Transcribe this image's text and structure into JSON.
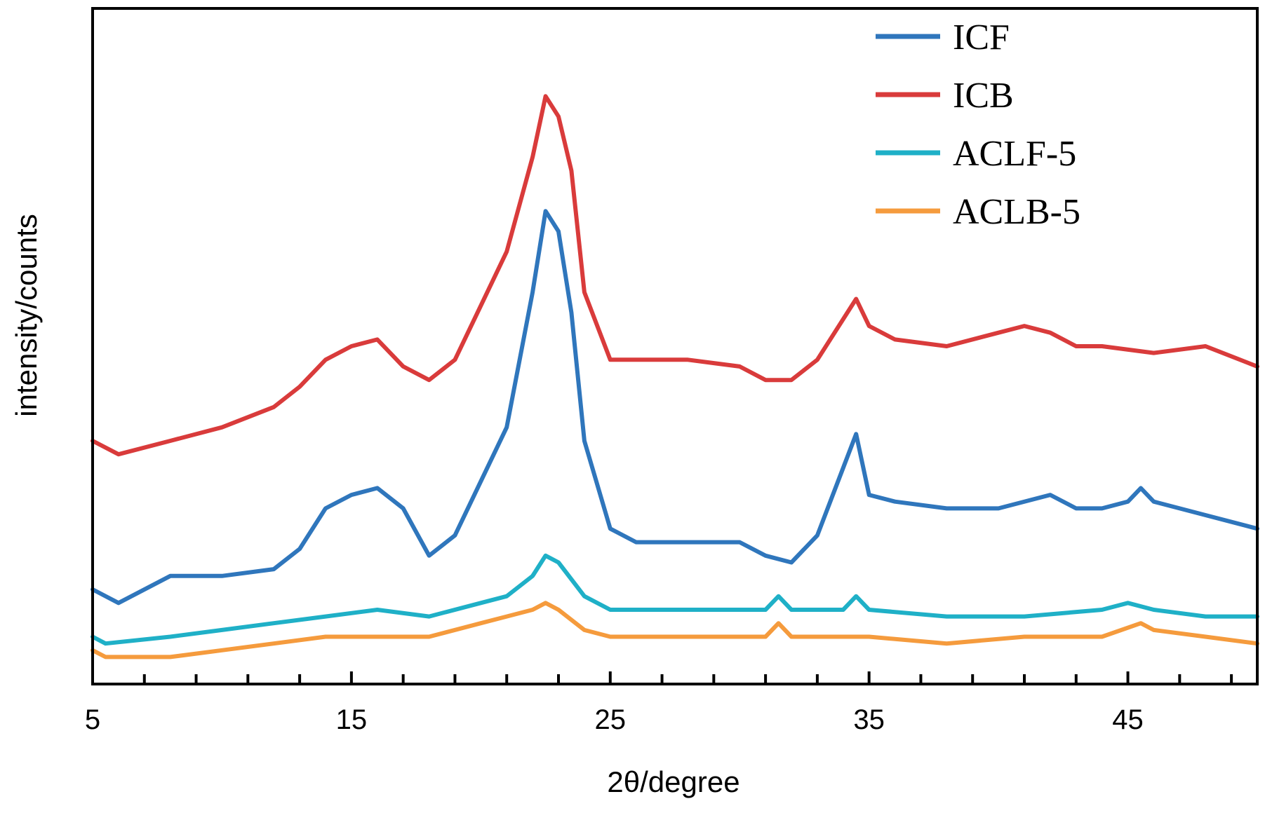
{
  "chart_data": {
    "type": "line",
    "title": "",
    "xlabel": "2θ/degree",
    "ylabel": "intensity/counts",
    "xlim": [
      5,
      50
    ],
    "ylim": [
      0,
      100
    ],
    "x_tick_labels": [
      {
        "value": 5,
        "label": "5"
      },
      {
        "value": 15,
        "label": "15"
      },
      {
        "value": 25,
        "label": "25"
      },
      {
        "value": 35,
        "label": "35"
      },
      {
        "value": 45,
        "label": "45"
      }
    ],
    "x_minor_ticks": [
      7,
      9,
      11,
      13,
      17,
      19,
      21,
      23,
      27,
      29,
      31,
      33,
      37,
      39,
      41,
      43,
      47,
      49
    ],
    "y_ticks_shown": false,
    "grid": false,
    "legend_position": "top-right",
    "series": [
      {
        "name": "ICF",
        "color": "#2f76bc",
        "points": [
          [
            5,
            14
          ],
          [
            6,
            12
          ],
          [
            8,
            16
          ],
          [
            10,
            16
          ],
          [
            12,
            17
          ],
          [
            13,
            20
          ],
          [
            14,
            26
          ],
          [
            15,
            28
          ],
          [
            16,
            29
          ],
          [
            17,
            26
          ],
          [
            18,
            19
          ],
          [
            19,
            22
          ],
          [
            20,
            30
          ],
          [
            21,
            38
          ],
          [
            22,
            58
          ],
          [
            22.5,
            70
          ],
          [
            23,
            67
          ],
          [
            23.5,
            55
          ],
          [
            24,
            36
          ],
          [
            25,
            23
          ],
          [
            26,
            21
          ],
          [
            28,
            21
          ],
          [
            30,
            21
          ],
          [
            31,
            19
          ],
          [
            32,
            18
          ],
          [
            33,
            22
          ],
          [
            34,
            32
          ],
          [
            34.5,
            37
          ],
          [
            35,
            28
          ],
          [
            36,
            27
          ],
          [
            38,
            26
          ],
          [
            40,
            26
          ],
          [
            42,
            28
          ],
          [
            43,
            26
          ],
          [
            44,
            26
          ],
          [
            45,
            27
          ],
          [
            45.5,
            29
          ],
          [
            46,
            27
          ],
          [
            48,
            25
          ],
          [
            50,
            23
          ]
        ]
      },
      {
        "name": "ICB",
        "color": "#d93b3b",
        "points": [
          [
            5,
            36
          ],
          [
            6,
            34
          ],
          [
            8,
            36
          ],
          [
            10,
            38
          ],
          [
            12,
            41
          ],
          [
            13,
            44
          ],
          [
            14,
            48
          ],
          [
            15,
            50
          ],
          [
            16,
            51
          ],
          [
            17,
            47
          ],
          [
            18,
            45
          ],
          [
            19,
            48
          ],
          [
            20,
            56
          ],
          [
            21,
            64
          ],
          [
            22,
            78
          ],
          [
            22.5,
            87
          ],
          [
            23,
            84
          ],
          [
            23.5,
            76
          ],
          [
            24,
            58
          ],
          [
            25,
            48
          ],
          [
            26,
            48
          ],
          [
            28,
            48
          ],
          [
            30,
            47
          ],
          [
            31,
            45
          ],
          [
            32,
            45
          ],
          [
            33,
            48
          ],
          [
            34,
            54
          ],
          [
            34.5,
            57
          ],
          [
            35,
            53
          ],
          [
            36,
            51
          ],
          [
            38,
            50
          ],
          [
            40,
            52
          ],
          [
            41,
            53
          ],
          [
            42,
            52
          ],
          [
            43,
            50
          ],
          [
            44,
            50
          ],
          [
            46,
            49
          ],
          [
            48,
            50
          ],
          [
            50,
            47
          ]
        ]
      },
      {
        "name": "ACLF-5",
        "color": "#1fb0c7",
        "points": [
          [
            5,
            7
          ],
          [
            5.5,
            6
          ],
          [
            8,
            7
          ],
          [
            10,
            8
          ],
          [
            12,
            9
          ],
          [
            14,
            10
          ],
          [
            16,
            11
          ],
          [
            18,
            10
          ],
          [
            20,
            12
          ],
          [
            21,
            13
          ],
          [
            22,
            16
          ],
          [
            22.5,
            19
          ],
          [
            23,
            18
          ],
          [
            24,
            13
          ],
          [
            25,
            11
          ],
          [
            27,
            11
          ],
          [
            29,
            11
          ],
          [
            31,
            11
          ],
          [
            31.5,
            13
          ],
          [
            32,
            11
          ],
          [
            34,
            11
          ],
          [
            34.5,
            13
          ],
          [
            35,
            11
          ],
          [
            38,
            10
          ],
          [
            41,
            10
          ],
          [
            44,
            11
          ],
          [
            45,
            12
          ],
          [
            46,
            11
          ],
          [
            48,
            10
          ],
          [
            50,
            10
          ]
        ]
      },
      {
        "name": "ACLB-5",
        "color": "#f59b3d",
        "points": [
          [
            5,
            5
          ],
          [
            5.5,
            4
          ],
          [
            8,
            4
          ],
          [
            10,
            5
          ],
          [
            12,
            6
          ],
          [
            14,
            7
          ],
          [
            16,
            7
          ],
          [
            18,
            7
          ],
          [
            20,
            9
          ],
          [
            21,
            10
          ],
          [
            22,
            11
          ],
          [
            22.5,
            12
          ],
          [
            23,
            11
          ],
          [
            24,
            8
          ],
          [
            25,
            7
          ],
          [
            27,
            7
          ],
          [
            29,
            7
          ],
          [
            31,
            7
          ],
          [
            31.5,
            9
          ],
          [
            32,
            7
          ],
          [
            34,
            7
          ],
          [
            35,
            7
          ],
          [
            38,
            6
          ],
          [
            41,
            7
          ],
          [
            44,
            7
          ],
          [
            45.5,
            9
          ],
          [
            46,
            8
          ],
          [
            48,
            7
          ],
          [
            50,
            6
          ]
        ]
      }
    ]
  }
}
